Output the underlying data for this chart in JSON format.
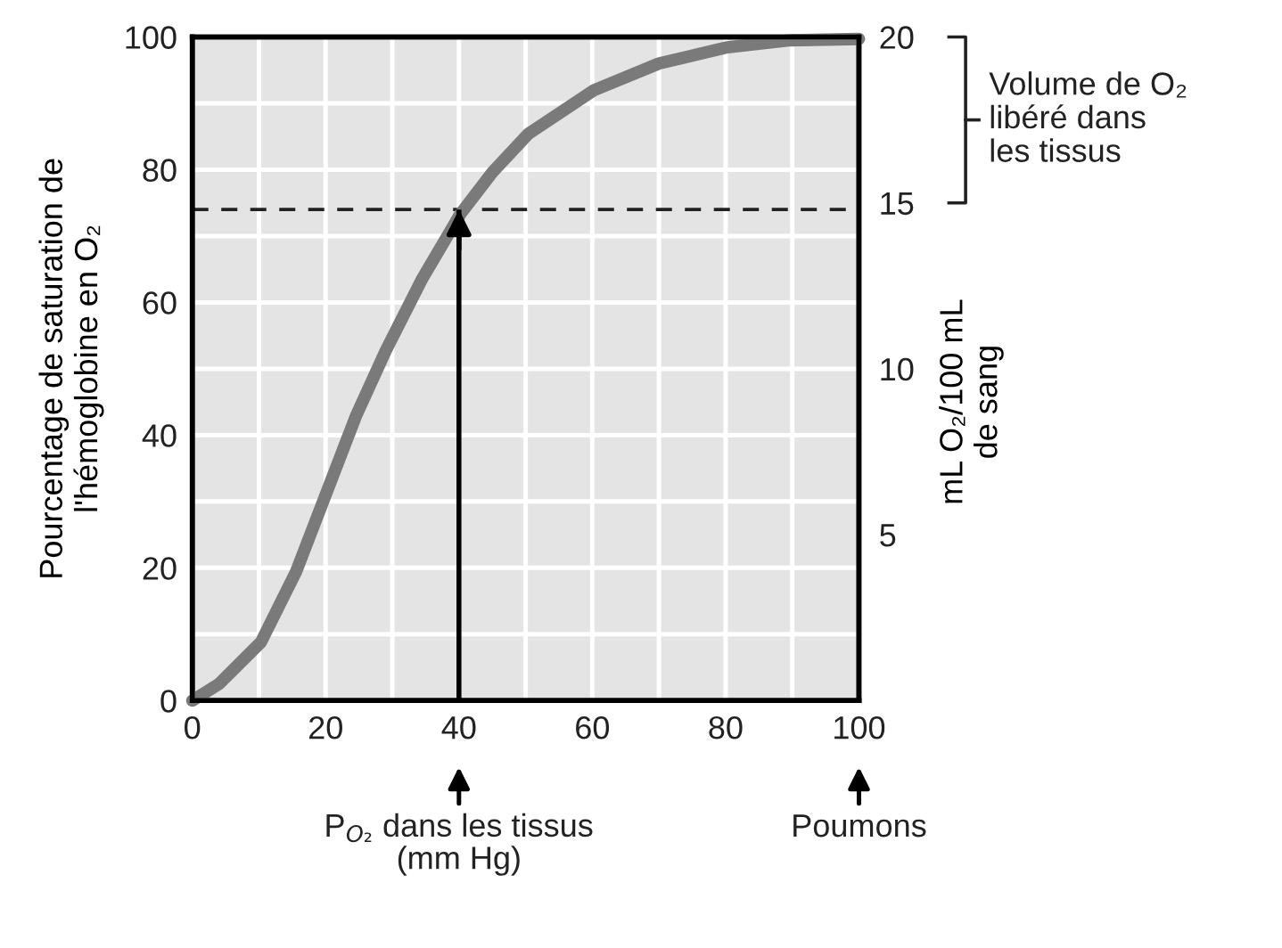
{
  "chart_data": {
    "type": "line",
    "ylabel": "Pourcentage de saturation de\nl'hémoglobine en O₂",
    "y2label": "mL O₂/100 mL\nde sang",
    "series": [
      {
        "color": "#7a7a7a",
        "x": [
          0,
          4,
          10.3,
          15.6,
          20,
          24.6,
          29,
          34.4,
          40.2,
          45,
          50.4,
          60.3,
          70,
          80,
          89.7,
          100
        ],
        "values": [
          0,
          2.5,
          8.8,
          19.5,
          31,
          43,
          52.7,
          63.4,
          73.3,
          79.6,
          85.4,
          92,
          96,
          98.4,
          99.5,
          99.7
        ]
      }
    ],
    "xlim": [
      0,
      100
    ],
    "ylim": [
      0,
      100
    ],
    "y2lim": [
      0,
      20
    ],
    "xticks": [
      0,
      {
        "value": 10,
        "label": null
      },
      20,
      {
        "value": 30,
        "label": null
      },
      40,
      {
        "value": 50,
        "label": null
      },
      60,
      {
        "value": 70,
        "label": null
      },
      80,
      {
        "value": 90,
        "label": null
      },
      100
    ],
    "yticks": [
      0,
      {
        "value": 10,
        "label": null
      },
      20,
      {
        "value": 30,
        "label": null
      },
      40,
      {
        "value": 50,
        "label": null
      },
      60,
      {
        "value": 70,
        "label": null
      },
      80,
      {
        "value": 90,
        "label": null
      },
      100
    ],
    "y2ticks": [
      5,
      10,
      15,
      20
    ],
    "ref_lines": [
      {
        "axis": "y",
        "value": 74,
        "line_style": "dashed",
        "color": "#222222"
      },
      {
        "axis": "x",
        "value": 40,
        "line_style": "solid",
        "color": "#000000"
      }
    ],
    "annotations": [
      {
        "text": "P$_{O₂}$ dans les tissus\n(mm Hg)",
        "x": 40
      },
      {
        "text": "Poumons",
        "x": 100
      },
      "Volume de O₂\nlibéré dans\nles tissus"
    ],
    "grid": true,
    "marker": "none",
    "line_style": "solid"
  }
}
